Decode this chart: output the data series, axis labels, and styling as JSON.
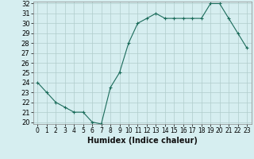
{
  "x": [
    0,
    1,
    2,
    3,
    4,
    5,
    6,
    7,
    8,
    9,
    10,
    11,
    12,
    13,
    14,
    15,
    16,
    17,
    18,
    19,
    20,
    21,
    22,
    23
  ],
  "y": [
    24.0,
    23.0,
    22.0,
    21.5,
    21.0,
    21.0,
    20.0,
    19.8,
    23.5,
    25.0,
    28.0,
    30.0,
    30.5,
    31.0,
    30.5,
    30.5,
    30.5,
    30.5,
    30.5,
    32.0,
    32.0,
    30.5,
    29.0,
    27.5
  ],
  "line_color": "#1a6b5a",
  "marker": "+",
  "marker_color": "#1a6b5a",
  "bg_color": "#d6eef0",
  "grid_color": "#b0cccc",
  "xlabel": "Humidex (Indice chaleur)",
  "xlabel_fontsize": 7,
  "ylabel_fontsize": 6,
  "ytick_min": 20,
  "ytick_max": 32,
  "xtick_labels": [
    "0",
    "1",
    "2",
    "3",
    "4",
    "5",
    "6",
    "7",
    "8",
    "9",
    "10",
    "11",
    "12",
    "13",
    "14",
    "15",
    "16",
    "17",
    "18",
    "19",
    "20",
    "21",
    "22",
    "23"
  ],
  "tick_fontsize": 5.5,
  "title": ""
}
